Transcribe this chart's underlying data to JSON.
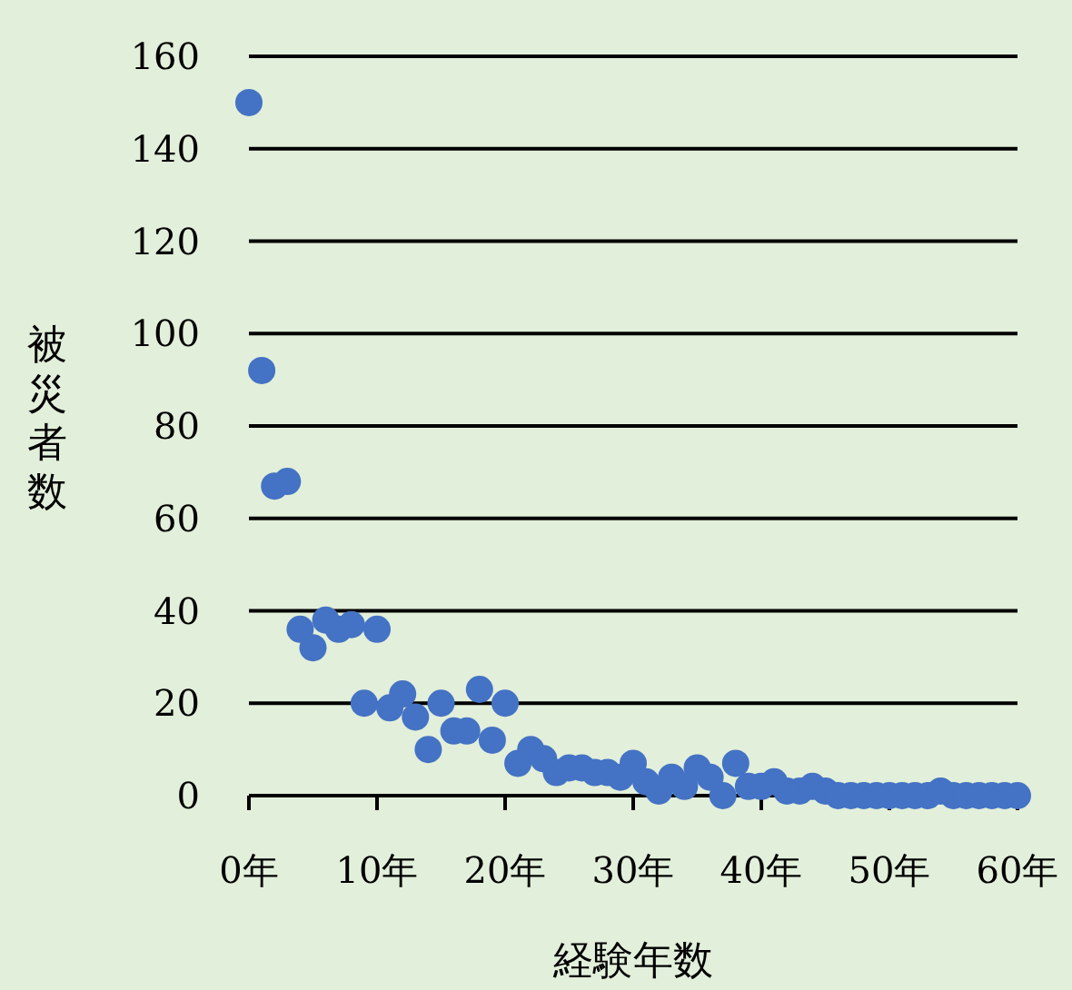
{
  "chart_data": {
    "type": "scatter",
    "xlabel": "経験年数",
    "ylabel": "被災者数",
    "color": "#4472c4",
    "marker": "circle",
    "grid": "y",
    "x": [
      0,
      1,
      2,
      3,
      4,
      5,
      6,
      7,
      8,
      9,
      10,
      11,
      12,
      13,
      14,
      15,
      16,
      17,
      18,
      19,
      20,
      21,
      22,
      23,
      24,
      25,
      26,
      27,
      28,
      29,
      30,
      31,
      32,
      33,
      34,
      35,
      36,
      37,
      38,
      39,
      40,
      41,
      42,
      43,
      44,
      45,
      46,
      47,
      48,
      49,
      50,
      51,
      52,
      53,
      54,
      55,
      56,
      57,
      58,
      59,
      60
    ],
    "values": [
      150,
      92,
      67,
      68,
      36,
      32,
      38,
      36,
      37,
      20,
      36,
      19,
      22,
      17,
      10,
      20,
      14,
      14,
      23,
      12,
      20,
      7,
      10,
      8,
      5,
      6,
      6,
      5,
      5,
      4,
      7,
      3,
      1,
      4,
      2,
      6,
      4,
      0,
      7,
      2,
      2,
      3,
      1,
      1,
      2,
      1,
      0,
      0,
      0,
      0,
      0,
      0,
      0,
      0,
      1,
      0,
      0,
      0,
      0,
      0,
      0
    ],
    "xlim": [
      0,
      60
    ],
    "ylim": [
      0,
      160
    ],
    "xticks": [
      {
        "value": 0,
        "label": "0年"
      },
      {
        "value": 10,
        "label": "10年"
      },
      {
        "value": 20,
        "label": "20年"
      },
      {
        "value": 30,
        "label": "30年"
      },
      {
        "value": 40,
        "label": "40年"
      },
      {
        "value": 50,
        "label": "50年"
      },
      {
        "value": 60,
        "label": "60年"
      }
    ],
    "yticks": [
      0,
      20,
      40,
      60,
      80,
      100,
      120,
      140,
      160
    ]
  }
}
